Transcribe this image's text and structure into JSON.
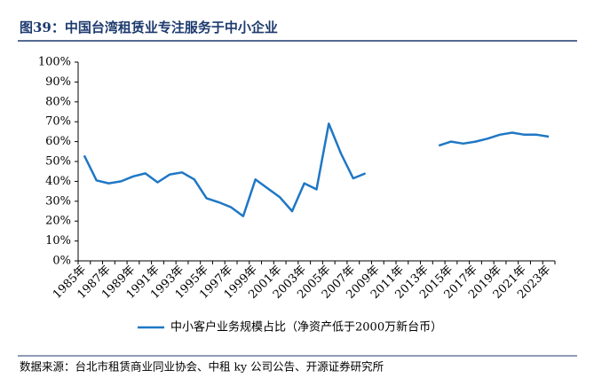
{
  "chart_data": {
    "type": "line",
    "title": "图39：中国台湾租赁业专注服务于中小企业",
    "source": "数据来源：台北市租赁商业同业协会、中租 ky 公司公告、开源证券研究所",
    "categories": [
      "1985年",
      null,
      "1987年",
      null,
      "1989年",
      null,
      "1991年",
      null,
      "1993年",
      null,
      "1995年",
      null,
      "1997年",
      null,
      "1999年",
      null,
      "2001年",
      null,
      "2003年",
      null,
      "2005年",
      null,
      "2007年",
      null,
      "2009年",
      null,
      "2011年",
      null,
      "2013年",
      null,
      "2015年",
      null,
      "2017年",
      null,
      "2019年",
      null,
      "2021年",
      null,
      "2023年"
    ],
    "series": [
      {
        "name": "中小客户业务规模占比（净资产低于2000万新台币）",
        "color": "#1f77c4",
        "values": [
          53,
          40.5,
          39,
          40,
          42.5,
          44,
          39.5,
          43.5,
          44.5,
          41,
          31.5,
          29.5,
          27,
          22.5,
          41,
          36.5,
          32,
          25,
          39,
          36,
          69,
          54,
          41.5,
          44,
          null,
          null,
          null,
          null,
          null,
          58,
          60,
          59,
          60,
          61.5,
          63.5,
          64.5,
          63.5,
          63.5,
          62.5
        ]
      }
    ],
    "ylim": [
      0,
      100
    ],
    "yticks": [
      {
        "value": 0,
        "label": "0%"
      },
      {
        "value": 10,
        "label": "10%"
      },
      {
        "value": 20,
        "label": "20%"
      },
      {
        "value": 30,
        "label": "30%"
      },
      {
        "value": 40,
        "label": "40%"
      },
      {
        "value": 50,
        "label": "50%"
      },
      {
        "value": 60,
        "label": "60%"
      },
      {
        "value": 70,
        "label": "70%"
      },
      {
        "value": 80,
        "label": "80%"
      },
      {
        "value": 90,
        "label": "90%"
      },
      {
        "value": 100,
        "label": "100%"
      }
    ],
    "legend": "bottom"
  }
}
